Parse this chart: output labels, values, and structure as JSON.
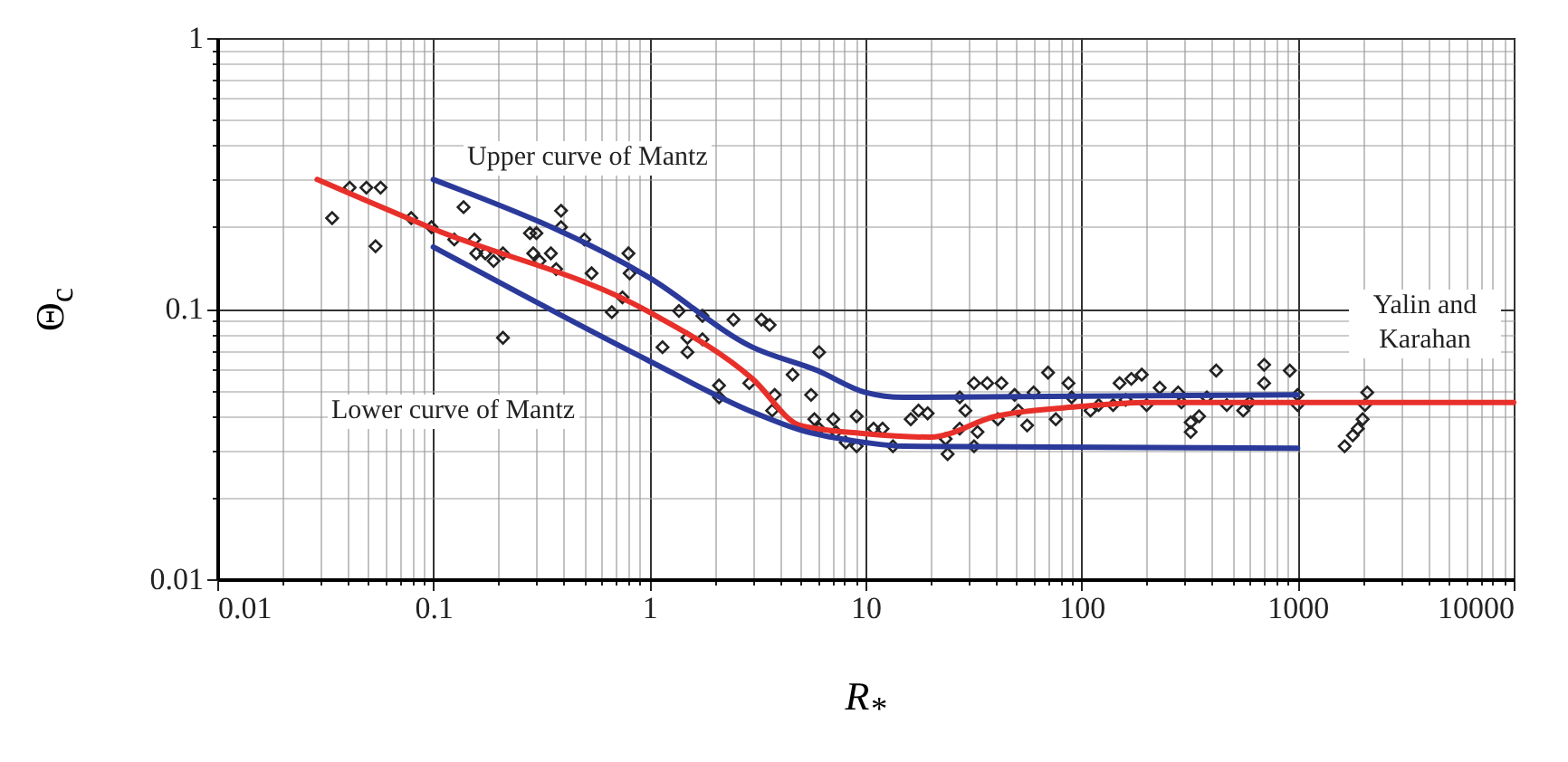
{
  "chart_data": {
    "type": "scatter",
    "xlabel": "R$_{*}$",
    "ylabel": "Θ$_{c}$",
    "log": "xy",
    "grid": true,
    "xlim": [
      0.01,
      10000
    ],
    "ylim": [
      0.01,
      1
    ],
    "xticks": [
      0.01,
      {
        "value": 0.02,
        "label": null
      },
      {
        "value": 0.03,
        "label": null
      },
      {
        "value": 0.04,
        "label": null
      },
      {
        "value": 0.05,
        "label": null
      },
      {
        "value": 0.06,
        "label": null
      },
      {
        "value": 0.07,
        "label": null
      },
      {
        "value": 0.08,
        "label": null
      },
      {
        "value": 0.09,
        "label": null
      },
      0.1,
      {
        "value": 0.2,
        "label": null
      },
      {
        "value": 0.3,
        "label": null
      },
      {
        "value": 0.4,
        "label": null
      },
      {
        "value": 0.5,
        "label": null
      },
      {
        "value": 0.6,
        "label": null
      },
      {
        "value": 0.7,
        "label": null
      },
      {
        "value": 0.8,
        "label": null
      },
      {
        "value": 0.9,
        "label": null
      },
      1,
      {
        "value": 2,
        "label": null
      },
      {
        "value": 3,
        "label": null
      },
      {
        "value": 4,
        "label": null
      },
      {
        "value": 5,
        "label": null
      },
      {
        "value": 6,
        "label": null
      },
      {
        "value": 7,
        "label": null
      },
      {
        "value": 8,
        "label": null
      },
      {
        "value": 9,
        "label": null
      },
      10,
      {
        "value": 20,
        "label": null
      },
      {
        "value": 30,
        "label": null
      },
      {
        "value": 40,
        "label": null
      },
      {
        "value": 50,
        "label": null
      },
      {
        "value": 60,
        "label": null
      },
      {
        "value": 70,
        "label": null
      },
      {
        "value": 80,
        "label": null
      },
      {
        "value": 90,
        "label": null
      },
      100,
      {
        "value": 200,
        "label": null
      },
      {
        "value": 300,
        "label": null
      },
      {
        "value": 400,
        "label": null
      },
      {
        "value": 500,
        "label": null
      },
      {
        "value": 600,
        "label": null
      },
      {
        "value": 700,
        "label": null
      },
      {
        "value": 800,
        "label": null
      },
      {
        "value": 900,
        "label": null
      },
      1000,
      {
        "value": 2000,
        "label": null
      },
      {
        "value": 3000,
        "label": null
      },
      {
        "value": 4000,
        "label": null
      },
      {
        "value": 5000,
        "label": null
      },
      {
        "value": 6000,
        "label": null
      },
      {
        "value": 7000,
        "label": null
      },
      {
        "value": 8000,
        "label": null
      },
      {
        "value": 9000,
        "label": null
      },
      10000
    ],
    "yticks": [
      0.01,
      {
        "value": 0.02,
        "label": null
      },
      {
        "value": 0.03,
        "label": null
      },
      {
        "value": 0.04,
        "label": null
      },
      {
        "value": 0.05,
        "label": null
      },
      {
        "value": 0.06,
        "label": null
      },
      {
        "value": 0.07,
        "label": null
      },
      {
        "value": 0.08,
        "label": null
      },
      {
        "value": 0.09,
        "label": null
      },
      0.1,
      {
        "value": 0.2,
        "label": null
      },
      {
        "value": 0.3,
        "label": null
      },
      {
        "value": 0.4,
        "label": null
      },
      {
        "value": 0.5,
        "label": null
      },
      {
        "value": 0.6,
        "label": null
      },
      {
        "value": 0.7,
        "label": null
      },
      {
        "value": 0.8,
        "label": null
      },
      {
        "value": 0.9,
        "label": null
      },
      1
    ],
    "series": [
      {
        "marker": "diamond",
        "color": "#222222",
        "x": [
          0.034,
          0.041,
          0.049,
          0.057,
          0.054,
          0.079,
          0.098,
          0.125,
          0.138,
          0.155,
          0.158,
          0.174,
          0.19,
          0.21,
          0.21,
          0.28,
          0.3,
          0.29,
          0.31,
          0.35,
          0.37,
          0.39,
          0.39,
          0.5,
          0.54,
          0.8,
          0.81,
          0.67,
          0.75,
          1.37,
          1.76,
          1.5,
          1.76,
          1.15,
          1.5,
          2.45,
          3.3,
          3.6,
          2.1,
          2.1,
          2.9,
          3.8,
          3.7,
          4.6,
          6.1,
          5.6,
          5.8,
          6.1,
          7.1,
          7.3,
          8.1,
          9.1,
          9.1,
          10.9,
          12,
          13.4,
          16.2,
          17.6,
          19.4,
          23.5,
          24,
          27.3,
          27.3,
          31.8,
          33,
          31.8,
          29,
          36.6,
          42.6,
          41,
          49,
          51,
          56,
          60,
          70,
          76,
          87,
          90,
          120,
          110,
          140,
          150,
          170,
          190,
          160,
          200,
          230,
          280,
          290,
          320,
          320,
          350,
          380,
          420,
          470,
          560,
          600,
          700,
          700,
          920,
          1000,
          1000,
          1650,
          1800,
          1900,
          2000,
          2050,
          2100
        ],
        "values": [
          0.216,
          0.28,
          0.28,
          0.28,
          0.17,
          0.216,
          0.2,
          0.18,
          0.237,
          0.18,
          0.16,
          0.16,
          0.15,
          0.16,
          0.078,
          0.19,
          0.19,
          0.16,
          0.15,
          0.16,
          0.14,
          0.23,
          0.2,
          0.18,
          0.135,
          0.16,
          0.135,
          0.097,
          0.11,
          0.098,
          0.094,
          0.078,
          0.077,
          0.072,
          0.069,
          0.091,
          0.091,
          0.087,
          0.052,
          0.047,
          0.053,
          0.048,
          0.042,
          0.057,
          0.069,
          0.048,
          0.039,
          0.036,
          0.039,
          0.035,
          0.032,
          0.04,
          0.031,
          0.036,
          0.036,
          0.031,
          0.039,
          0.042,
          0.041,
          0.033,
          0.029,
          0.047,
          0.036,
          0.053,
          0.035,
          0.031,
          0.042,
          0.053,
          0.053,
          0.039,
          0.048,
          0.042,
          0.037,
          0.049,
          0.058,
          0.039,
          0.053,
          0.047,
          0.044,
          0.042,
          0.044,
          0.053,
          0.055,
          0.057,
          0.046,
          0.044,
          0.051,
          0.049,
          0.045,
          0.038,
          0.035,
          0.04,
          0.047,
          0.059,
          0.044,
          0.042,
          0.045,
          0.062,
          0.053,
          0.059,
          0.048,
          0.044,
          0.031,
          0.034,
          0.036,
          0.039,
          0.044,
          0.049
        ]
      },
      {
        "type": "line",
        "color": "#e8302a",
        "x": [
          0.029,
          0.1,
          1,
          3,
          5,
          10,
          20,
          40,
          100,
          200,
          10000
        ],
        "values": [
          0.3,
          0.197,
          0.097,
          0.055,
          0.037,
          0.0345,
          0.0335,
          0.04,
          0.0435,
          0.045,
          0.045
        ]
      },
      {
        "type": "line",
        "color": "#2b3a9a",
        "x": [
          0.1,
          1,
          3,
          6,
          10,
          15,
          1000
        ],
        "values": [
          0.3,
          0.13,
          0.072,
          0.059,
          0.049,
          0.047,
          0.048
        ]
      },
      {
        "type": "line",
        "color": "#2b3a9a",
        "x": [
          0.1,
          1,
          3,
          5,
          10,
          15,
          1000
        ],
        "values": [
          0.169,
          0.064,
          0.0415,
          0.0356,
          0.032,
          0.031,
          0.0305
        ]
      }
    ],
    "annotations": [
      "Upper curve of Mantz",
      "Lower curve of Mantz",
      "Yalin and Karahan"
    ]
  }
}
